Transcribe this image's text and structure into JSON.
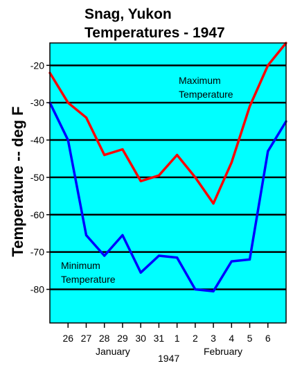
{
  "chart_data": {
    "type": "line",
    "title_lines": [
      "Snag, Yukon",
      "Temperatures - 1947"
    ],
    "ylabel": "Temperature -- deg F",
    "xlabel": "1947",
    "x_tick_labels": [
      "26",
      "27",
      "28",
      "29",
      "30",
      "31",
      "1",
      "2",
      "3",
      "4",
      "5",
      "6"
    ],
    "month_labels": [
      "January",
      "February"
    ],
    "y_ticks": [
      -20,
      -30,
      -40,
      -50,
      -60,
      -70,
      -80
    ],
    "ylim": [
      -89,
      -14
    ],
    "xlim": [
      0,
      13
    ],
    "grid": true,
    "background": "#00ffff",
    "series": [
      {
        "name": "Maximum Temperature",
        "name_lines": [
          "Maximum",
          "Temperature"
        ],
        "color": "#ff0000",
        "x": [
          0,
          1,
          2,
          3,
          4,
          5,
          6,
          7,
          8,
          9,
          10,
          11,
          12,
          13
        ],
        "values": [
          -22,
          -30,
          -34,
          -44,
          -42.5,
          -51,
          -49.5,
          -44,
          -50,
          -57,
          -46,
          -31,
          -20,
          -14
        ]
      },
      {
        "name": "Minimum Temperature",
        "name_lines": [
          "Minimum",
          "Temperature"
        ],
        "color": "#0000ff",
        "x": [
          0,
          1,
          2,
          3,
          4,
          5,
          6,
          7,
          8,
          9,
          10,
          11,
          12,
          13
        ],
        "values": [
          -30,
          -40,
          -65.5,
          -71,
          -65.5,
          -75.5,
          -71,
          -71.5,
          -80,
          -80.5,
          -72.5,
          -72,
          -43,
          -35
        ]
      }
    ]
  }
}
